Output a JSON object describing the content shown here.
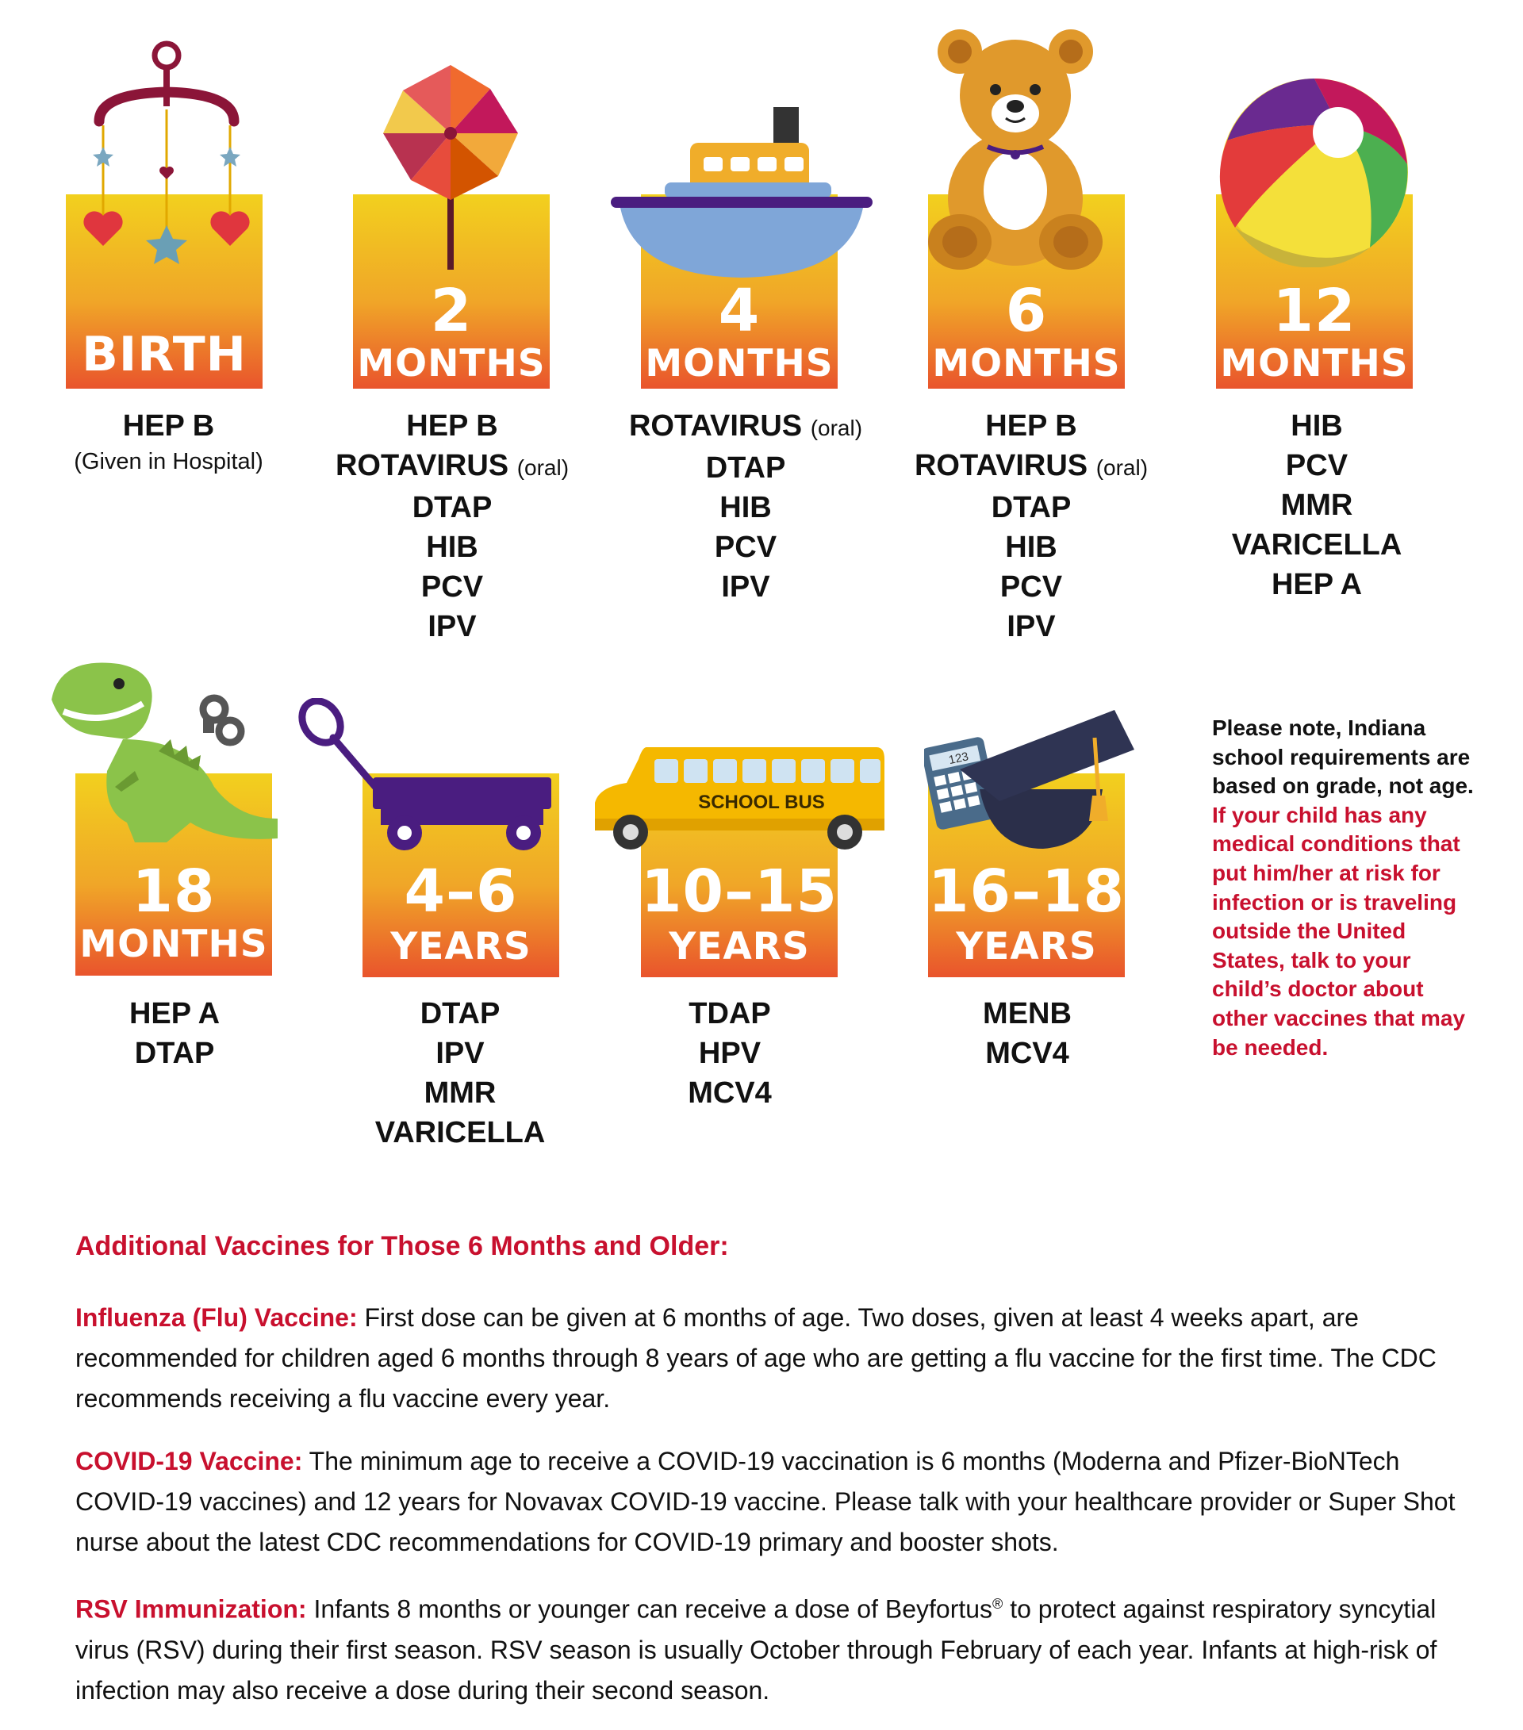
{
  "colors": {
    "accent_red": "#c8102e",
    "gradient_top": "#f2d01e",
    "gradient_bottom": "#e9542c"
  },
  "stages": [
    {
      "icon": "baby-mobile-icon",
      "age_solo": "BIRTH",
      "vaccines": [
        "HEP B"
      ],
      "sub": "(Given in Hospital)"
    },
    {
      "icon": "pinwheel-icon",
      "age_num": "2",
      "age_unit": "MONTHS",
      "vaccines": [
        {
          "name": "HEP B"
        },
        {
          "name": "ROTAVIRUS",
          "note": "(oral)"
        },
        {
          "name": "DTAP"
        },
        {
          "name": "HIB"
        },
        {
          "name": "PCV"
        },
        {
          "name": "IPV"
        }
      ]
    },
    {
      "icon": "toy-boat-icon",
      "age_num": "4",
      "age_unit": "MONTHS",
      "vaccines": [
        {
          "name": "ROTAVIRUS",
          "note": "(oral)"
        },
        {
          "name": "DTAP"
        },
        {
          "name": "HIB"
        },
        {
          "name": "PCV"
        },
        {
          "name": "IPV"
        }
      ]
    },
    {
      "icon": "teddy-bear-icon",
      "age_num": "6",
      "age_unit": "MONTHS",
      "vaccines": [
        {
          "name": "HEP B"
        },
        {
          "name": "ROTAVIRUS",
          "note": "(oral)"
        },
        {
          "name": "DTAP"
        },
        {
          "name": "HIB"
        },
        {
          "name": "PCV"
        },
        {
          "name": "IPV"
        }
      ]
    },
    {
      "icon": "beach-ball-icon",
      "age_num": "12",
      "age_unit": "MONTHS",
      "vaccines": [
        {
          "name": "HIB"
        },
        {
          "name": "PCV"
        },
        {
          "name": "MMR"
        },
        {
          "name": "VARICELLA"
        },
        {
          "name": "HEP A"
        }
      ]
    },
    {
      "icon": "toy-dinosaur-icon",
      "age_num": "18",
      "age_unit": "MONTHS",
      "vaccines": [
        {
          "name": "HEP A"
        },
        {
          "name": "DTAP"
        }
      ]
    },
    {
      "icon": "wagon-icon",
      "age_num": "4–6",
      "age_unit": "YEARS",
      "vaccines": [
        {
          "name": "DTAP"
        },
        {
          "name": "IPV"
        },
        {
          "name": "MMR"
        },
        {
          "name": "VARICELLA"
        }
      ]
    },
    {
      "icon": "school-bus-icon",
      "bus_text": "SCHOOL BUS",
      "age_num": "10–15",
      "age_unit": "YEARS",
      "vaccines": [
        {
          "name": "TDAP"
        },
        {
          "name": "HPV"
        },
        {
          "name": "MCV4"
        }
      ]
    },
    {
      "icon": "graduation-cap-icon",
      "calc_text": "123",
      "age_num": "16–18",
      "age_unit": "YEARS",
      "vaccines": [
        {
          "name": "MENB"
        },
        {
          "name": "MCV4"
        }
      ]
    }
  ],
  "side_note": {
    "black": "Please note, Indiana school requirements are based on grade, not age.",
    "red": "If your child has any medical conditions that put him/her at risk for infection or is traveling outside the United States, talk to your child’s doctor about other vaccines that may be needed."
  },
  "additional": {
    "title": "Additional Vaccines for Those 6 Months and Older:",
    "flu_label": "Influenza (Flu) Vaccine:",
    "flu_text": "First dose can be given at 6 months of age. Two doses, given at least 4 weeks apart, are recommended for children aged 6 months through 8 years of age who are getting a flu vaccine for the first time. The CDC recommends receiving a flu vaccine every year.",
    "covid_label": "COVID-19 Vaccine:",
    "covid_text": "The minimum age to receive a COVID-19 vaccination is 6 months (Moderna and Pfizer-BioNTech COVID-19 vaccines) and 12 years for Novavax COVID-19 vaccine. Please talk with your healthcare provider or Super Shot nurse about the latest CDC recommendations for COVID-19 primary and booster shots.",
    "rsv_label": "RSV Immunization:",
    "rsv_text_before": "Infants 8 months or younger can receive a dose of Beyfortus",
    "rsv_reg": "®",
    "rsv_text_after": " to protect against respiratory syncytial virus (RSV) during their first season. RSV season is usually October through February of each year. Infants at high-risk of infection may also receive a dose during their second season."
  }
}
